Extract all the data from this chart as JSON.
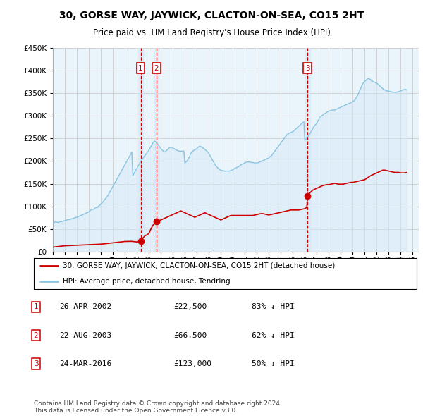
{
  "title": "30, GORSE WAY, JAYWICK, CLACTON-ON-SEA, CO15 2HT",
  "subtitle": "Price paid vs. HM Land Registry's House Price Index (HPI)",
  "ylim": [
    0,
    450000
  ],
  "xlim_start": 1995.0,
  "xlim_end": 2025.5,
  "sales": [
    {
      "label": "1",
      "date_num": 2002.32,
      "price": 22500,
      "date_str": "26-APR-2002",
      "price_str": "£22,500",
      "pct_str": "83% ↓ HPI"
    },
    {
      "label": "2",
      "date_num": 2003.64,
      "price": 66500,
      "date_str": "22-AUG-2003",
      "price_str": "£66,500",
      "pct_str": "62% ↓ HPI"
    },
    {
      "label": "3",
      "date_num": 2016.23,
      "price": 123000,
      "date_str": "24-MAR-2016",
      "price_str": "£123,000",
      "pct_str": "50% ↓ HPI"
    }
  ],
  "hpi_line_color": "#89c4e1",
  "hpi_fill_color": "#d6eaf8",
  "price_line_color": "#cc0000",
  "vline_color": "#cc0000",
  "vband_color": "#d6eaf8",
  "marker_box_color": "#cc0000",
  "grid_color": "#cccccc",
  "background_color": "#eaf4fb",
  "legend_label_red": "30, GORSE WAY, JAYWICK, CLACTON-ON-SEA, CO15 2HT (detached house)",
  "legend_label_blue": "HPI: Average price, detached house, Tendring",
  "footer": "Contains HM Land Registry data © Crown copyright and database right 2024.\nThis data is licensed under the Open Government Licence v3.0.",
  "hpi_x": [
    1995.0,
    1995.08,
    1995.17,
    1995.25,
    1995.33,
    1995.42,
    1995.5,
    1995.58,
    1995.67,
    1995.75,
    1995.83,
    1995.92,
    1996.0,
    1996.08,
    1996.17,
    1996.25,
    1996.33,
    1996.42,
    1996.5,
    1996.58,
    1996.67,
    1996.75,
    1996.83,
    1996.92,
    1997.0,
    1997.08,
    1997.17,
    1997.25,
    1997.33,
    1997.42,
    1997.5,
    1997.58,
    1997.67,
    1997.75,
    1997.83,
    1997.92,
    1998.0,
    1998.08,
    1998.17,
    1998.25,
    1998.33,
    1998.42,
    1998.5,
    1998.58,
    1998.67,
    1998.75,
    1998.83,
    1998.92,
    1999.0,
    1999.08,
    1999.17,
    1999.25,
    1999.33,
    1999.42,
    1999.5,
    1999.58,
    1999.67,
    1999.75,
    1999.83,
    1999.92,
    2000.0,
    2000.08,
    2000.17,
    2000.25,
    2000.33,
    2000.42,
    2000.5,
    2000.58,
    2000.67,
    2000.75,
    2000.83,
    2000.92,
    2001.0,
    2001.08,
    2001.17,
    2001.25,
    2001.33,
    2001.42,
    2001.5,
    2001.58,
    2001.67,
    2001.75,
    2001.83,
    2001.92,
    2002.0,
    2002.08,
    2002.17,
    2002.25,
    2002.33,
    2002.42,
    2002.5,
    2002.58,
    2002.67,
    2002.75,
    2002.83,
    2002.92,
    2003.0,
    2003.08,
    2003.17,
    2003.25,
    2003.33,
    2003.42,
    2003.5,
    2003.58,
    2003.67,
    2003.75,
    2003.83,
    2003.92,
    2004.0,
    2004.08,
    2004.17,
    2004.25,
    2004.33,
    2004.42,
    2004.5,
    2004.58,
    2004.67,
    2004.75,
    2004.83,
    2004.92,
    2005.0,
    2005.08,
    2005.17,
    2005.25,
    2005.33,
    2005.42,
    2005.5,
    2005.58,
    2005.67,
    2005.75,
    2005.83,
    2005.92,
    2006.0,
    2006.08,
    2006.17,
    2006.25,
    2006.33,
    2006.42,
    2006.5,
    2006.58,
    2006.67,
    2006.75,
    2006.83,
    2006.92,
    2007.0,
    2007.08,
    2007.17,
    2007.25,
    2007.33,
    2007.42,
    2007.5,
    2007.58,
    2007.67,
    2007.75,
    2007.83,
    2007.92,
    2008.0,
    2008.08,
    2008.17,
    2008.25,
    2008.33,
    2008.42,
    2008.5,
    2008.58,
    2008.67,
    2008.75,
    2008.83,
    2008.92,
    2009.0,
    2009.08,
    2009.17,
    2009.25,
    2009.33,
    2009.42,
    2009.5,
    2009.58,
    2009.67,
    2009.75,
    2009.83,
    2009.92,
    2010.0,
    2010.08,
    2010.17,
    2010.25,
    2010.33,
    2010.42,
    2010.5,
    2010.58,
    2010.67,
    2010.75,
    2010.83,
    2010.92,
    2011.0,
    2011.08,
    2011.17,
    2011.25,
    2011.33,
    2011.42,
    2011.5,
    2011.58,
    2011.67,
    2011.75,
    2011.83,
    2011.92,
    2012.0,
    2012.08,
    2012.17,
    2012.25,
    2012.33,
    2012.42,
    2012.5,
    2012.58,
    2012.67,
    2012.75,
    2012.83,
    2012.92,
    2013.0,
    2013.08,
    2013.17,
    2013.25,
    2013.33,
    2013.42,
    2013.5,
    2013.58,
    2013.67,
    2013.75,
    2013.83,
    2013.92,
    2014.0,
    2014.08,
    2014.17,
    2014.25,
    2014.33,
    2014.42,
    2014.5,
    2014.58,
    2014.67,
    2014.75,
    2014.83,
    2014.92,
    2015.0,
    2015.08,
    2015.17,
    2015.25,
    2015.33,
    2015.42,
    2015.5,
    2015.58,
    2015.67,
    2015.75,
    2015.83,
    2015.92,
    2016.0,
    2016.08,
    2016.17,
    2016.25,
    2016.33,
    2016.42,
    2016.5,
    2016.58,
    2016.67,
    2016.75,
    2016.83,
    2016.92,
    2017.0,
    2017.08,
    2017.17,
    2017.25,
    2017.33,
    2017.42,
    2017.5,
    2017.58,
    2017.67,
    2017.75,
    2017.83,
    2017.92,
    2018.0,
    2018.08,
    2018.17,
    2018.25,
    2018.33,
    2018.42,
    2018.5,
    2018.58,
    2018.67,
    2018.75,
    2018.83,
    2018.92,
    2019.0,
    2019.08,
    2019.17,
    2019.25,
    2019.33,
    2019.42,
    2019.5,
    2019.58,
    2019.67,
    2019.75,
    2019.83,
    2019.92,
    2020.0,
    2020.08,
    2020.17,
    2020.25,
    2020.33,
    2020.42,
    2020.5,
    2020.58,
    2020.67,
    2020.75,
    2020.83,
    2020.92,
    2021.0,
    2021.08,
    2021.17,
    2021.25,
    2021.33,
    2021.42,
    2021.5,
    2021.58,
    2021.67,
    2021.75,
    2021.83,
    2021.92,
    2022.0,
    2022.08,
    2022.17,
    2022.25,
    2022.33,
    2022.42,
    2022.5,
    2022.58,
    2022.67,
    2022.75,
    2022.83,
    2022.92,
    2023.0,
    2023.08,
    2023.17,
    2023.25,
    2023.33,
    2023.42,
    2023.5,
    2023.58,
    2023.67,
    2023.75,
    2023.83,
    2023.92,
    2024.0,
    2024.08,
    2024.17,
    2024.25,
    2024.33,
    2024.42,
    2024.5
  ],
  "hpi_y": [
    65000,
    64000,
    65500,
    66000,
    65000,
    64500,
    65000,
    66000,
    67000,
    66000,
    67500,
    68000,
    68500,
    69000,
    70000,
    71000,
    70500,
    71500,
    72000,
    73000,
    72500,
    74000,
    75000,
    75500,
    76000,
    77000,
    78000,
    79000,
    80000,
    81000,
    82000,
    83000,
    84000,
    85000,
    86000,
    87000,
    88000,
    90000,
    92000,
    94000,
    93000,
    94000,
    96000,
    98000,
    97000,
    99000,
    101000,
    103000,
    105000,
    108000,
    110000,
    112000,
    115000,
    118000,
    121000,
    124000,
    128000,
    132000,
    136000,
    140000,
    144000,
    148000,
    152000,
    156000,
    160000,
    164000,
    168000,
    172000,
    176000,
    180000,
    184000,
    188000,
    192000,
    196000,
    200000,
    204000,
    208000,
    212000,
    216000,
    220000,
    168000,
    172000,
    176000,
    180000,
    184000,
    188000,
    192000,
    196000,
    200000,
    203000,
    206000,
    209000,
    212000,
    215000,
    218000,
    221000,
    224000,
    228000,
    232000,
    236000,
    240000,
    243000,
    244000,
    242000,
    240000,
    237000,
    234000,
    231000,
    228000,
    225000,
    223000,
    221000,
    220000,
    222000,
    224000,
    226000,
    228000,
    230000,
    231000,
    230000,
    229000,
    228000,
    226000,
    225000,
    224000,
    223000,
    222000,
    222000,
    222000,
    222000,
    222000,
    222000,
    196000,
    198000,
    200000,
    203000,
    207000,
    212000,
    217000,
    220000,
    222000,
    224000,
    225000,
    226000,
    228000,
    230000,
    232000,
    233000,
    232000,
    231000,
    229000,
    228000,
    226000,
    224000,
    222000,
    220000,
    217000,
    213000,
    209000,
    205000,
    201000,
    197000,
    193000,
    190000,
    187000,
    185000,
    183000,
    181000,
    180000,
    179000,
    179000,
    178000,
    178000,
    178000,
    178000,
    178000,
    178000,
    178000,
    179000,
    180000,
    181000,
    182000,
    184000,
    185000,
    186000,
    187000,
    188000,
    190000,
    192000,
    193000,
    194000,
    195000,
    196000,
    197000,
    198000,
    198000,
    198000,
    198000,
    197000,
    197000,
    197000,
    196000,
    196000,
    196000,
    196000,
    196000,
    197000,
    198000,
    199000,
    200000,
    201000,
    202000,
    203000,
    204000,
    205000,
    206000,
    207000,
    209000,
    211000,
    213000,
    216000,
    219000,
    222000,
    225000,
    228000,
    231000,
    234000,
    237000,
    240000,
    243000,
    246000,
    249000,
    252000,
    255000,
    258000,
    260000,
    261000,
    262000,
    263000,
    264000,
    265000,
    267000,
    269000,
    271000,
    273000,
    275000,
    277000,
    279000,
    281000,
    283000,
    285000,
    287000,
    246000,
    248000,
    251000,
    254000,
    257000,
    260000,
    264000,
    268000,
    272000,
    276000,
    279000,
    281000,
    284000,
    288000,
    292000,
    296000,
    298000,
    300000,
    302000,
    304000,
    305000,
    306000,
    308000,
    309000,
    310000,
    311000,
    312000,
    312000,
    313000,
    313000,
    313000,
    314000,
    315000,
    316000,
    317000,
    318000,
    319000,
    320000,
    321000,
    322000,
    323000,
    324000,
    325000,
    326000,
    327000,
    328000,
    329000,
    330000,
    331000,
    333000,
    335000,
    338000,
    342000,
    346000,
    351000,
    356000,
    361000,
    367000,
    371000,
    374000,
    376000,
    378000,
    380000,
    382000,
    382000,
    381000,
    379000,
    377000,
    376000,
    375000,
    374000,
    373000,
    372000,
    370000,
    368000,
    366000,
    364000,
    362000,
    360000,
    358000,
    357000,
    356000,
    355000,
    355000,
    354000,
    354000,
    353000,
    353000,
    352000,
    352000,
    352000,
    352000,
    352000,
    353000,
    353000,
    354000,
    355000,
    356000,
    357000,
    358000,
    358000,
    358000,
    357000,
    356000,
    355000,
    354000,
    354000,
    354000,
    354000,
    355000,
    356000,
    357000,
    358000,
    359000,
    360000
  ],
  "red_x": [
    1995.0,
    1995.17,
    1995.33,
    1995.5,
    1995.67,
    1995.83,
    1996.0,
    1996.17,
    1996.33,
    1996.5,
    1996.67,
    1996.83,
    1997.0,
    1997.17,
    1997.33,
    1997.5,
    1997.67,
    1997.83,
    1998.0,
    1998.17,
    1998.33,
    1998.5,
    1998.67,
    1998.83,
    1999.0,
    1999.17,
    1999.33,
    1999.5,
    1999.67,
    1999.83,
    2000.0,
    2000.17,
    2000.33,
    2000.5,
    2000.67,
    2000.83,
    2001.0,
    2001.17,
    2001.33,
    2001.5,
    2001.67,
    2001.83,
    2002.0,
    2002.17,
    2002.32,
    2002.32,
    2002.5,
    2002.67,
    2002.83,
    2003.0,
    2003.17,
    2003.33,
    2003.5,
    2003.64,
    2003.64,
    2003.83,
    2004.0,
    2004.17,
    2004.33,
    2004.5,
    2004.67,
    2004.83,
    2005.0,
    2005.17,
    2005.33,
    2005.5,
    2005.67,
    2005.83,
    2006.0,
    2006.17,
    2006.33,
    2006.5,
    2006.67,
    2006.83,
    2007.0,
    2007.17,
    2007.33,
    2007.5,
    2007.67,
    2007.83,
    2008.0,
    2008.17,
    2008.33,
    2008.5,
    2008.67,
    2008.83,
    2009.0,
    2009.17,
    2009.33,
    2009.5,
    2009.67,
    2009.83,
    2010.0,
    2010.17,
    2010.33,
    2010.5,
    2010.67,
    2010.83,
    2011.0,
    2011.17,
    2011.33,
    2011.5,
    2011.67,
    2011.83,
    2012.0,
    2012.17,
    2012.33,
    2012.5,
    2012.67,
    2012.83,
    2013.0,
    2013.17,
    2013.33,
    2013.5,
    2013.67,
    2013.83,
    2014.0,
    2014.17,
    2014.33,
    2014.5,
    2014.67,
    2014.83,
    2015.0,
    2015.17,
    2015.33,
    2015.5,
    2015.67,
    2015.83,
    2016.0,
    2016.17,
    2016.23,
    2016.23,
    2016.5,
    2016.67,
    2016.83,
    2017.0,
    2017.17,
    2017.33,
    2017.5,
    2017.67,
    2017.83,
    2018.0,
    2018.17,
    2018.33,
    2018.5,
    2018.67,
    2018.83,
    2019.0,
    2019.17,
    2019.33,
    2019.5,
    2019.67,
    2019.83,
    2020.0,
    2020.17,
    2020.33,
    2020.5,
    2020.67,
    2020.83,
    2021.0,
    2021.17,
    2021.33,
    2021.5,
    2021.67,
    2021.83,
    2022.0,
    2022.17,
    2022.33,
    2022.5,
    2022.67,
    2022.83,
    2023.0,
    2023.17,
    2023.33,
    2023.5,
    2023.67,
    2023.83,
    2024.0,
    2024.17,
    2024.33,
    2024.5
  ],
  "red_y": [
    10000,
    10500,
    11000,
    11500,
    12000,
    12500,
    13000,
    13200,
    13400,
    13600,
    13800,
    14000,
    14200,
    14400,
    14600,
    14800,
    15000,
    15200,
    15400,
    15600,
    15800,
    16000,
    16200,
    16400,
    16600,
    17000,
    17500,
    18000,
    18500,
    19000,
    19500,
    20000,
    20500,
    21000,
    21500,
    22000,
    22500,
    22600,
    22700,
    22800,
    22500,
    22000,
    21500,
    22000,
    22500,
    22500,
    30000,
    35000,
    37000,
    40000,
    50000,
    58000,
    64000,
    66500,
    66500,
    68000,
    70000,
    72000,
    74000,
    76000,
    78000,
    80000,
    82000,
    84000,
    86000,
    88000,
    90000,
    88000,
    86000,
    84000,
    82000,
    80000,
    78000,
    76000,
    78000,
    80000,
    82000,
    84000,
    86000,
    84000,
    82000,
    80000,
    78000,
    76000,
    74000,
    72000,
    70000,
    72000,
    74000,
    76000,
    78000,
    80000,
    80000,
    80000,
    80000,
    80000,
    80000,
    80000,
    80000,
    80000,
    80000,
    80000,
    80000,
    81000,
    82000,
    83000,
    84000,
    84000,
    83000,
    82000,
    81000,
    82000,
    83000,
    84000,
    85000,
    86000,
    87000,
    88000,
    89000,
    90000,
    91000,
    92000,
    92000,
    92000,
    92000,
    92000,
    93000,
    94000,
    95000,
    98000,
    123000,
    123000,
    132000,
    136000,
    138000,
    140000,
    142000,
    144000,
    146000,
    147000,
    148000,
    148000,
    149000,
    150000,
    151000,
    150000,
    149000,
    149000,
    149000,
    150000,
    151000,
    152000,
    153000,
    153000,
    154000,
    155000,
    156000,
    157000,
    158000,
    159000,
    162000,
    165000,
    168000,
    170000,
    172000,
    174000,
    176000,
    178000,
    180000,
    180000,
    179000,
    178000,
    177000,
    176000,
    175000,
    175000,
    175000,
    174000,
    174000,
    174000,
    175000
  ]
}
